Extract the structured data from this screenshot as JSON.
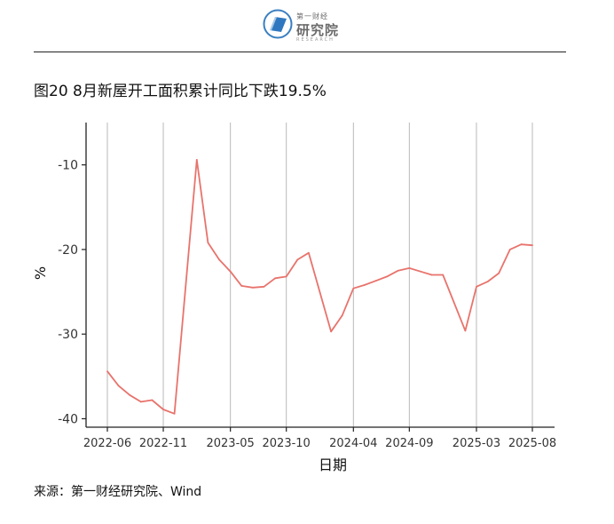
{
  "header": {
    "logo_top": "第一财经",
    "logo_main": "研究院",
    "logo_sub": "RESEARCH"
  },
  "title": "图20 8月新屋开工面积累计同比下跌19.5%",
  "source": "来源：第一财经研究院、Wind",
  "chart_data": {
    "type": "line",
    "title": "",
    "xlabel": "日期",
    "ylabel": "%",
    "ylim": [
      -41,
      -5
    ],
    "yticks": [
      -10,
      -20,
      -30,
      -40
    ],
    "xticks": [
      "2022-06",
      "2022-11",
      "2023-05",
      "2023-10",
      "2024-04",
      "2024-09",
      "2025-03",
      "2025-08"
    ],
    "grid": "vertical",
    "line_color": "#e8736c",
    "series": [
      {
        "x": [
          "2022-06",
          "2022-07",
          "2022-08",
          "2022-09",
          "2022-10",
          "2022-11",
          "2022-12",
          "2023-02",
          "2023-03",
          "2023-04",
          "2023-05",
          "2023-06",
          "2023-07",
          "2023-08",
          "2023-09",
          "2023-10",
          "2023-11",
          "2023-12",
          "2024-02",
          "2024-03",
          "2024-04",
          "2024-05",
          "2024-06",
          "2024-07",
          "2024-08",
          "2024-09",
          "2024-10",
          "2024-11",
          "2024-12",
          "2025-02",
          "2025-03",
          "2025-04",
          "2025-05",
          "2025-06",
          "2025-07",
          "2025-08"
        ],
        "values": [
          -34.4,
          -36.1,
          -37.2,
          -38.0,
          -37.8,
          -38.9,
          -39.4,
          -9.4,
          -19.2,
          -21.2,
          -22.6,
          -24.3,
          -24.5,
          -24.4,
          -23.4,
          -23.2,
          -21.2,
          -20.4,
          -29.7,
          -27.8,
          -24.6,
          -24.2,
          -23.7,
          -23.2,
          -22.5,
          -22.2,
          -22.6,
          -23.0,
          -23.0,
          -29.6,
          -24.4,
          -23.8,
          -22.8,
          -20.0,
          -19.4,
          -19.5
        ]
      }
    ]
  }
}
